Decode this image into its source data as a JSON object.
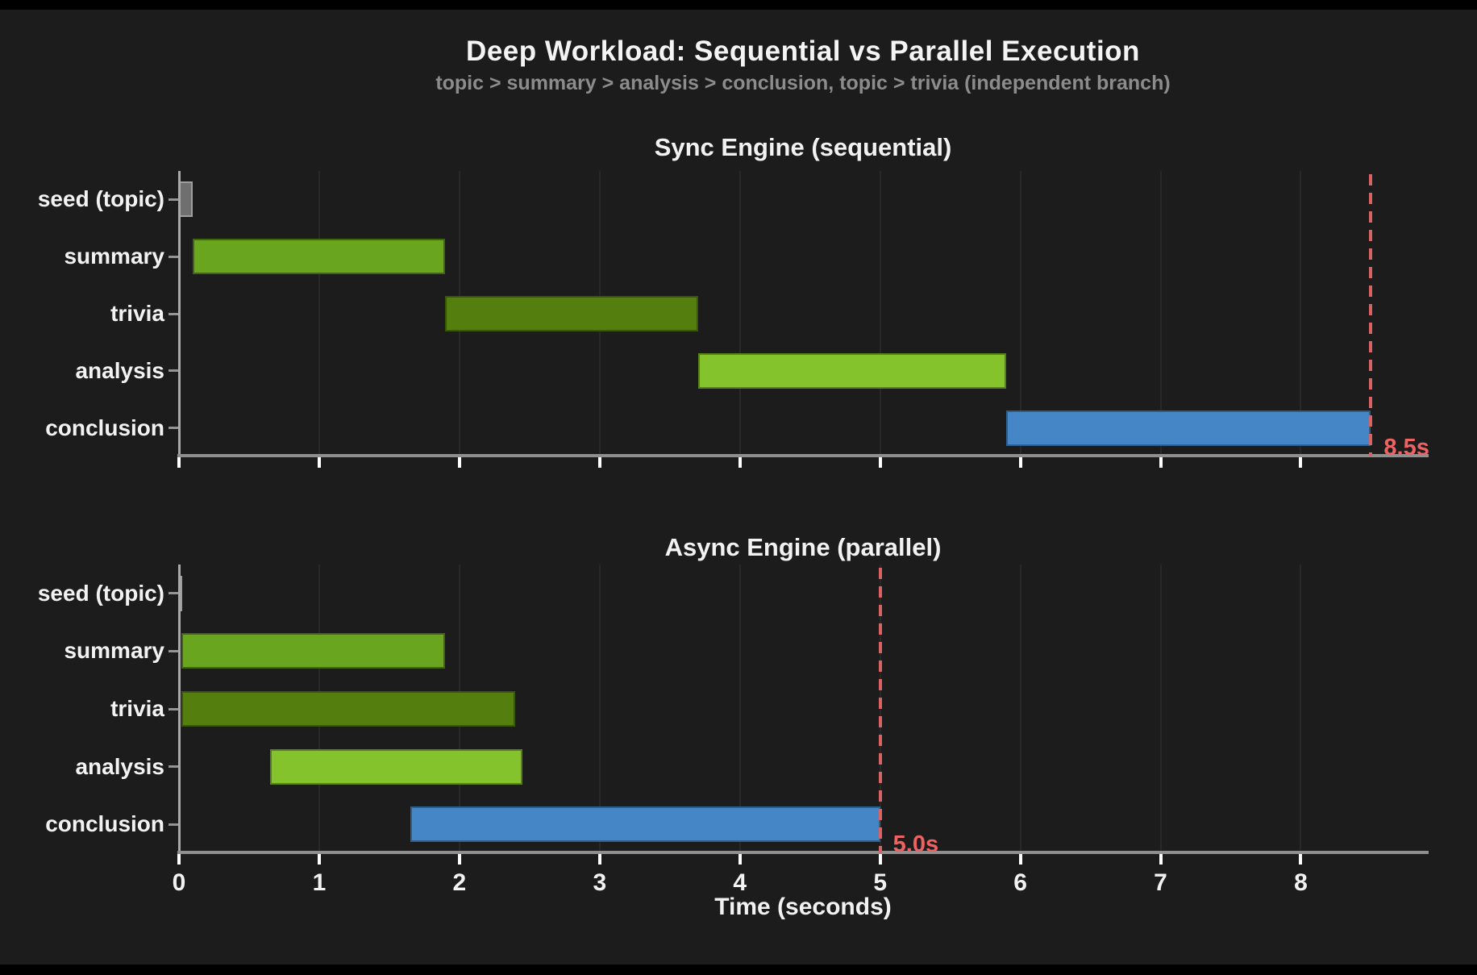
{
  "header": {
    "title": "Deep Workload: Sequential vs Parallel Execution",
    "subtitle": "topic > summary > analysis > conclusion,  topic > trivia (independent branch)"
  },
  "colors": {
    "background": "#1c1c1d",
    "text": "#f2f2f2",
    "subtitle_text": "#8c8c8c",
    "grid": "#28282a",
    "axis": "#8f8f8f",
    "x_tick": "#ffffff",
    "y_tick": "#949494",
    "deadline_line": "#d96262",
    "deadline_label": "#ee6262"
  },
  "chart_data": [
    {
      "type": "bar",
      "variant": "gantt-horizontal",
      "title": "Sync Engine (sequential)",
      "categories": [
        "seed (topic)",
        "summary",
        "trivia",
        "analysis",
        "conclusion"
      ],
      "bars": [
        {
          "task": "seed (topic)",
          "start": 0.0,
          "end": 0.1,
          "fill": "#6f6f6f",
          "edge": "#9f9f9f"
        },
        {
          "task": "summary",
          "start": 0.1,
          "end": 1.9,
          "fill": "#69a51e",
          "edge": "#41660f"
        },
        {
          "task": "trivia",
          "start": 1.9,
          "end": 3.7,
          "fill": "#547e0d",
          "edge": "#3a5708"
        },
        {
          "task": "analysis",
          "start": 3.7,
          "end": 5.9,
          "fill": "#85c32c",
          "edge": "#55801a"
        },
        {
          "task": "conclusion",
          "start": 5.9,
          "end": 8.5,
          "fill": "#4486c6",
          "edge": "#2e608f"
        }
      ],
      "deadline": {
        "value": 8.5,
        "label": "8.5s"
      },
      "x_ticks": [
        0,
        1,
        2,
        3,
        4,
        5,
        6,
        7,
        8
      ],
      "x_max": 8.9,
      "show_tick_labels": false,
      "xlabel": "",
      "grid": true,
      "legend": false
    },
    {
      "type": "bar",
      "variant": "gantt-horizontal",
      "title": "Async Engine (parallel)",
      "categories": [
        "seed (topic)",
        "summary",
        "trivia",
        "analysis",
        "conclusion"
      ],
      "bars": [
        {
          "task": "seed (topic)",
          "start": 0.0,
          "end": 0.02,
          "fill": "#6f6f6f",
          "edge": "#9f9f9f"
        },
        {
          "task": "summary",
          "start": 0.02,
          "end": 1.9,
          "fill": "#69a51e",
          "edge": "#41660f"
        },
        {
          "task": "trivia",
          "start": 0.02,
          "end": 2.4,
          "fill": "#547e0d",
          "edge": "#3a5708"
        },
        {
          "task": "analysis",
          "start": 0.65,
          "end": 2.45,
          "fill": "#85c32c",
          "edge": "#55801a"
        },
        {
          "task": "conclusion",
          "start": 1.65,
          "end": 5.0,
          "fill": "#4486c6",
          "edge": "#2e608f"
        }
      ],
      "deadline": {
        "value": 5.0,
        "label": "5.0s"
      },
      "x_ticks": [
        0,
        1,
        2,
        3,
        4,
        5,
        6,
        7,
        8
      ],
      "x_max": 8.9,
      "show_tick_labels": true,
      "xlabel": "Time (seconds)",
      "grid": true,
      "legend": false
    }
  ]
}
